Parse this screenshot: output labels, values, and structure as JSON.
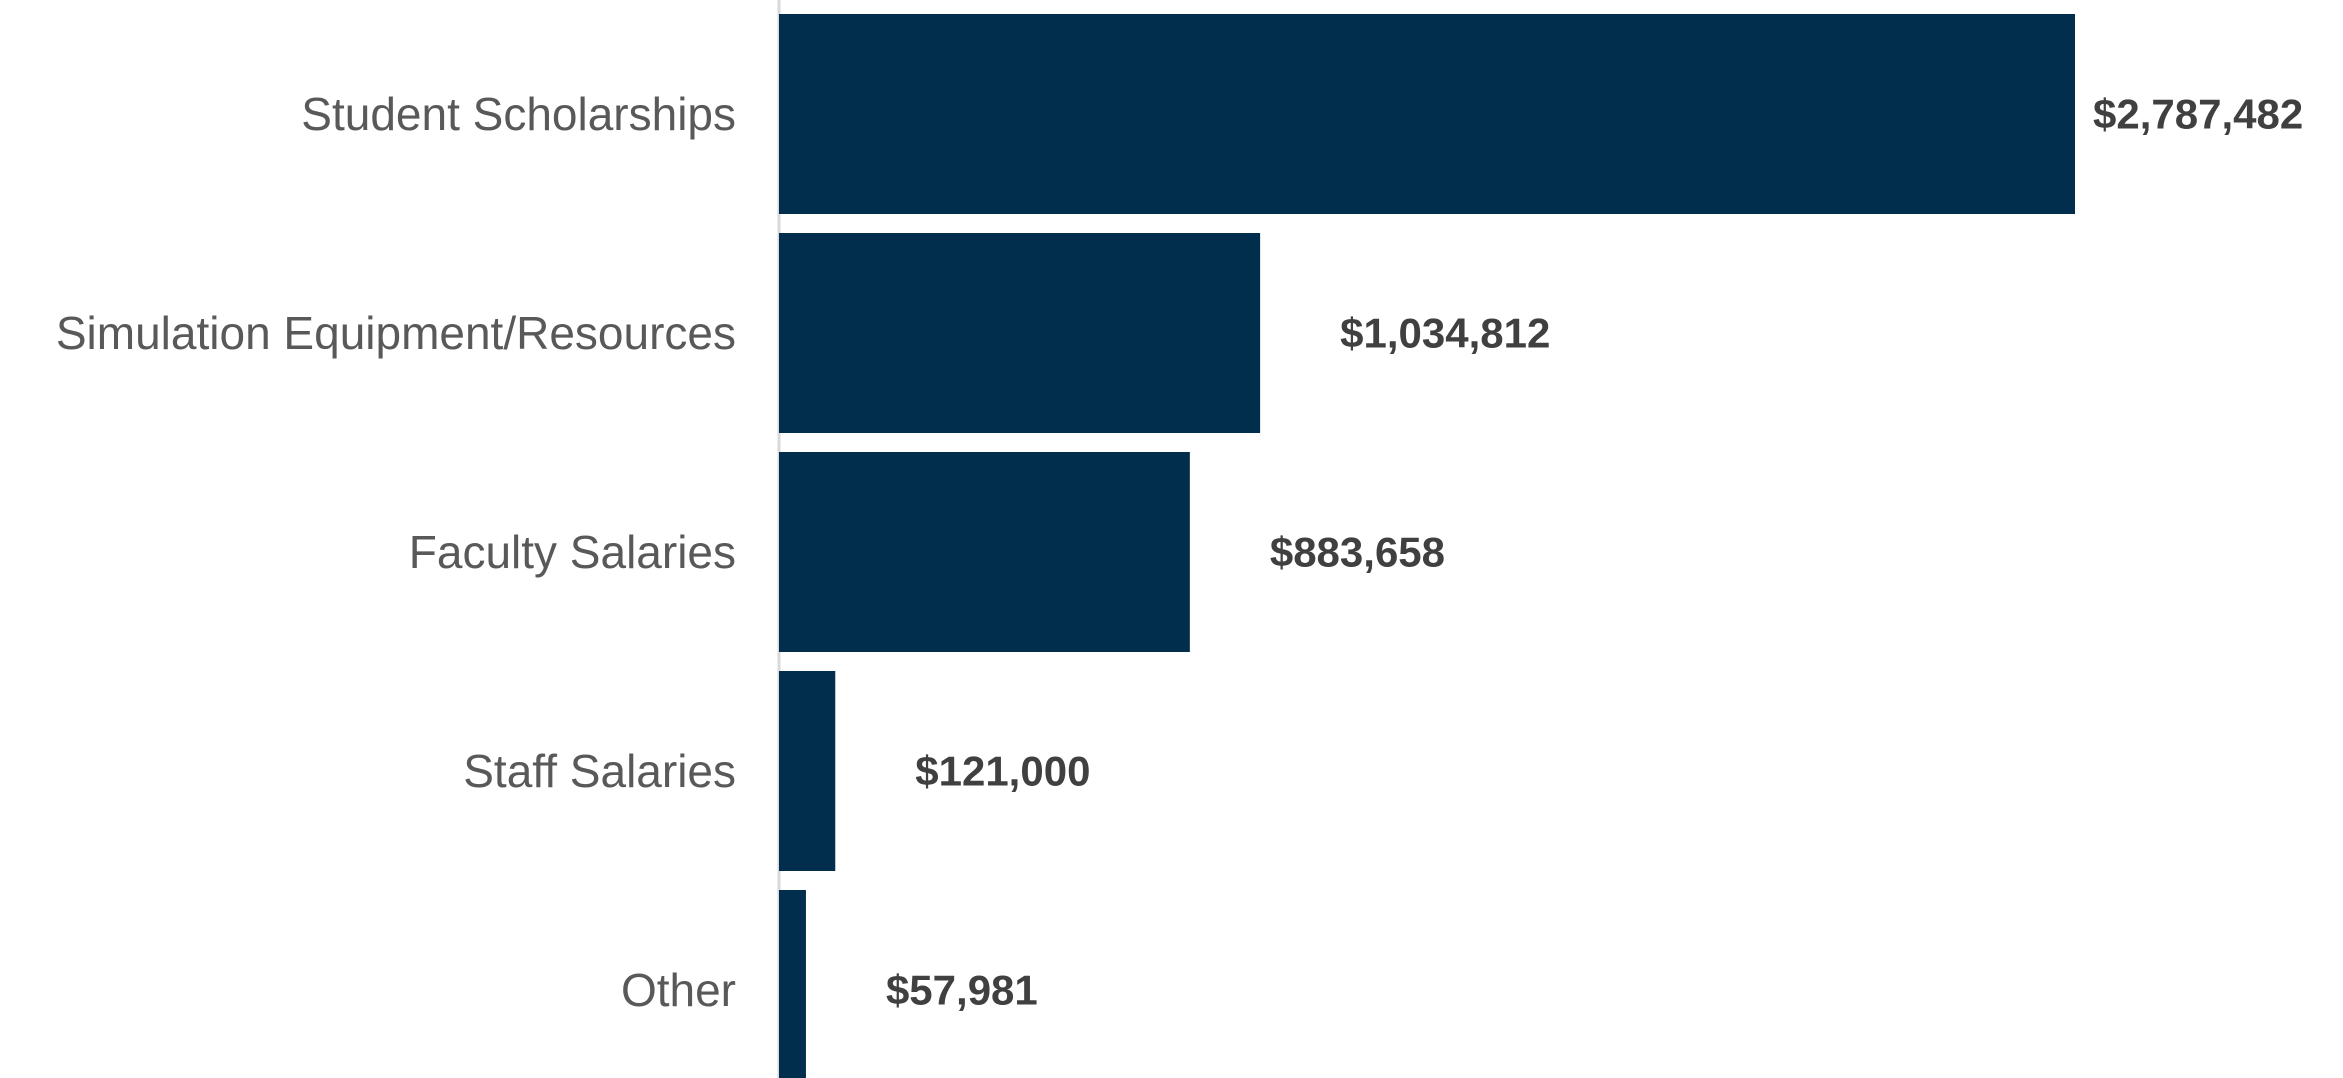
{
  "chart_data": {
    "type": "bar",
    "orientation": "horizontal",
    "categories": [
      "Student Scholarships",
      "Simulation Equipment/Resources",
      "Faculty Salaries",
      "Staff Salaries",
      "Other"
    ],
    "values": [
      2787482,
      1034812,
      883658,
      121000,
      57981
    ],
    "data_labels": [
      "$2,787,482",
      "$1,034,812",
      "$883,658",
      "$121,000",
      "$57,981"
    ],
    "title": "",
    "xlabel": "",
    "ylabel": "",
    "grid": false,
    "legend": "none",
    "colors": {
      "bar": "#022e4e",
      "axis": "#d9d9d9",
      "category_text": "#595959",
      "value_text": "#404040"
    }
  }
}
